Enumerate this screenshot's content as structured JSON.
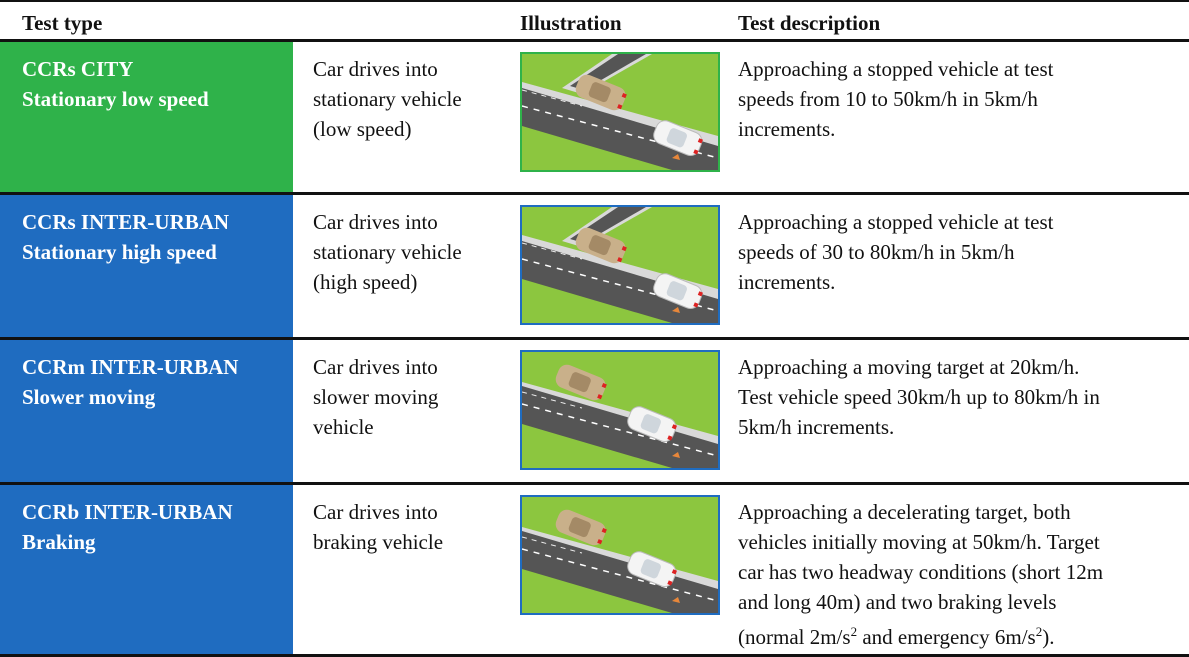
{
  "table": {
    "header": [
      "Test type",
      "Illustration",
      "Test description"
    ],
    "rows": [
      {
        "color": "#2fb24a",
        "frame": "#2fb24a",
        "type": [
          "CCRs CITY",
          "Stationary low speed"
        ],
        "short": [
          "Car drives into",
          "stationary vehicle",
          "(low speed)"
        ],
        "description": [
          "Approaching a stopped vehicle at test",
          "speeds from 10 to 50km/h in 5km/h",
          "increments."
        ]
      },
      {
        "color": "#1f6cc0",
        "frame": "#1f6cc0",
        "type": [
          "CCRs INTER-URBAN",
          "Stationary high speed"
        ],
        "short": [
          "Car drives into",
          "stationary vehicle",
          "(high speed)"
        ],
        "description": [
          "Approaching a stopped vehicle at test",
          "speeds of 30 to 80km/h in 5km/h",
          "increments."
        ]
      },
      {
        "color": "#1f6cc0",
        "frame": "#1f6cc0",
        "type": [
          "CCRm INTER-URBAN",
          "Slower moving"
        ],
        "short": [
          "Car drives into",
          "slower moving",
          "vehicle"
        ],
        "description": [
          "Approaching a moving target at 20km/h.",
          "Test vehicle speed 30km/h up to 80km/h in",
          "5km/h increments."
        ]
      },
      {
        "color": "#1f6cc0",
        "frame": "#1f6cc0",
        "type": [
          "CCRb INTER-URBAN",
          "Braking"
        ],
        "short": [
          "Car drives into",
          "braking vehicle"
        ],
        "description": [
          "Approaching a decelerating target, both",
          "vehicles initially moving at 50km/h. Target",
          "car has two headway conditions (short 12m",
          "and long 40m) and two braking levels",
          [
            {
              "text": "(normal 2m/s"
            },
            {
              "sup": "2"
            },
            {
              "text": " and emergency 6m/s"
            },
            {
              "sup": "2"
            },
            {
              "text": ")."
            }
          ]
        ]
      }
    ]
  }
}
